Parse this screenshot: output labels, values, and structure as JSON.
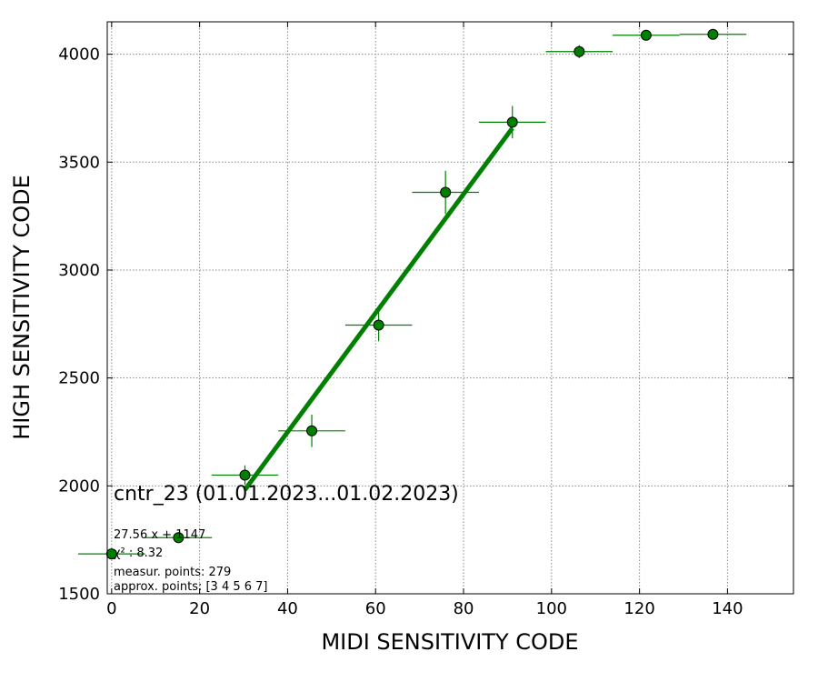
{
  "chart_data": {
    "type": "scatter",
    "xlabel": "MIDI SENSITIVITY CODE",
    "ylabel": "HIGH SENSITIVITY CODE",
    "xlim": [
      -1,
      155
    ],
    "ylim": [
      1500,
      4150
    ],
    "xticks": [
      0,
      20,
      40,
      60,
      80,
      100,
      120,
      140
    ],
    "yticks": [
      1500,
      2000,
      2500,
      3000,
      3500,
      4000
    ],
    "grid": true,
    "colors": {
      "points": "#008000",
      "fit_line": "#008000",
      "errorbars": "#008000",
      "marker_edge": "#000000"
    },
    "series": [
      {
        "x": [
          0,
          15.2,
          30.3,
          45.5,
          60.7,
          75.9,
          91.1,
          106.3,
          121.5,
          136.7
        ],
        "y": [
          1685,
          1760,
          2050,
          2255,
          2745,
          3360,
          3685,
          4012,
          4088,
          4092
        ],
        "xerr": [
          7.6,
          7.6,
          7.6,
          7.6,
          7.6,
          7.6,
          7.6,
          7.6,
          7.6,
          7.6
        ],
        "yerr": [
          0,
          25,
          45,
          75,
          75,
          100,
          75,
          30,
          10,
          10
        ]
      }
    ],
    "fit": {
      "slope": 27.56,
      "intercept": 1147,
      "x_range": [
        30.3,
        91.1
      ]
    },
    "annotations": {
      "title": "cntr_23 (01.01.2023...01.02.2023)",
      "equation": "27.56 x + 1147",
      "chi2": "χ² : 8.32",
      "measured": "measur. points: 279",
      "approx": "approx. points: [3 4 5 6 7]"
    }
  }
}
